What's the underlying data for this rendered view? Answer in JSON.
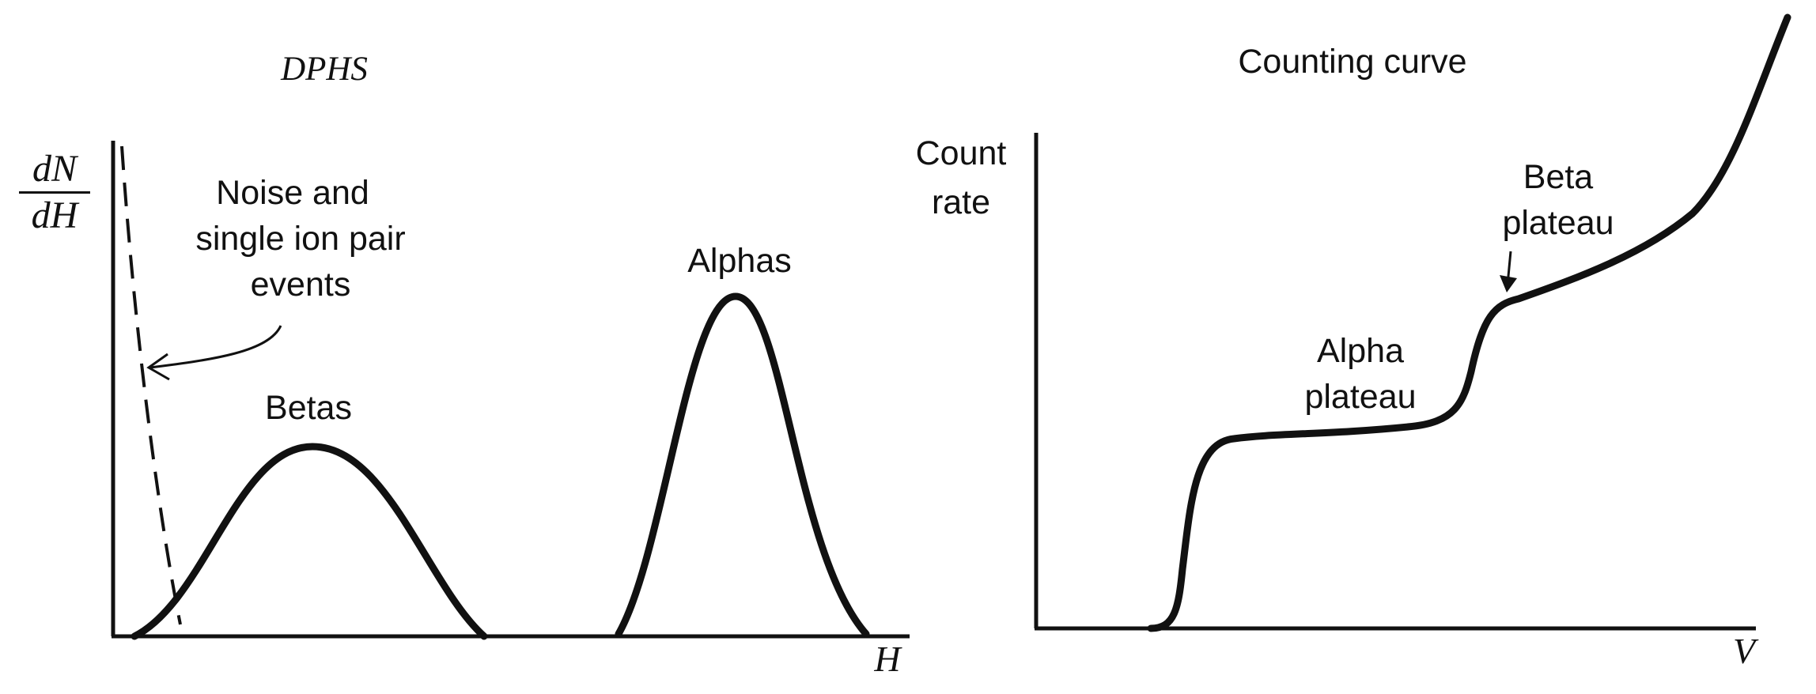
{
  "left_panel": {
    "title": "DPHS",
    "y_axis_label_numerator": "dN",
    "y_axis_label_denominator": "dH",
    "x_axis_label": "H",
    "annotations": {
      "noise_line1": "Noise and",
      "noise_line2": "single ion pair",
      "noise_line3": "events",
      "betas": "Betas",
      "alphas": "Alphas"
    }
  },
  "right_panel": {
    "title": "Counting curve",
    "y_axis_label_line1": "Count",
    "y_axis_label_line2": "rate",
    "x_axis_label": "V",
    "annotations": {
      "alpha_line1": "Alpha",
      "alpha_line2": "plateau",
      "beta_line1": "Beta",
      "beta_line2": "plateau"
    }
  },
  "colors": {
    "ink": "#111111",
    "background": "#ffffff"
  }
}
